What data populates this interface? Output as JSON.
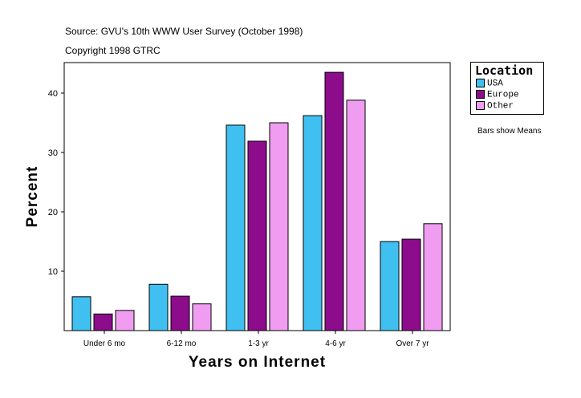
{
  "source": "Source: GVU's 10th WWW User Survey (October 1998)",
  "copyright": "Copyright 1998 GTRC",
  "note": "Bars show Means",
  "chart_data": {
    "type": "bar",
    "xlabel": "Years on Internet",
    "ylabel": "Percent",
    "ylim": [
      0,
      45
    ],
    "yticks": [
      10,
      20,
      30,
      40
    ],
    "categories": [
      "Under 6 mo",
      "6-12 mo",
      "1-3 yr",
      "4-6 yr",
      "Over 7 yr"
    ],
    "legend_title": "Location",
    "legend_position": "right",
    "grid": false,
    "series": [
      {
        "name": "USA",
        "color": "#40C0F0",
        "values": [
          5.7,
          7.8,
          34.6,
          36.2,
          15.0
        ]
      },
      {
        "name": "Europe",
        "color": "#8C0C8C",
        "values": [
          2.8,
          5.8,
          31.9,
          43.5,
          15.4
        ]
      },
      {
        "name": "Other",
        "color": "#F09CF0",
        "values": [
          3.4,
          4.5,
          35.0,
          38.8,
          18.0
        ]
      }
    ]
  }
}
